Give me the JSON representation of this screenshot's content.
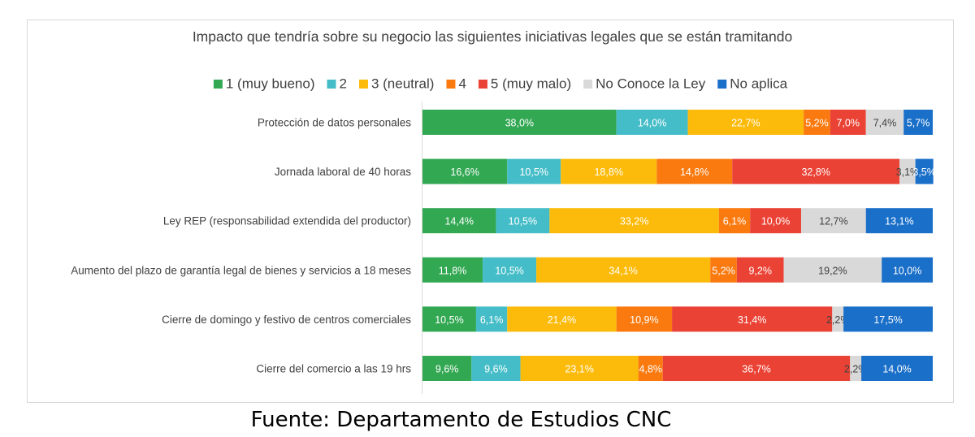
{
  "chart_data": {
    "type": "bar",
    "orientation": "horizontal",
    "stacked": true,
    "title": "Impacto que tendría sobre su negocio las siguientes iniciativas legales que se están tramitando",
    "categories": [
      "Protección de datos personales",
      "Jornada laboral de 40 horas",
      "Ley REP (responsabilidad extendida del productor)",
      "Aumento del plazo de garantía legal de bienes y servicios a 18 meses",
      "Cierre de domingo y festivo de centros comerciales",
      "Cierre del comercio a las 19 hrs"
    ],
    "series": [
      {
        "name": "1 (muy bueno)",
        "color": "#33a853",
        "values": [
          38.0,
          16.6,
          14.4,
          11.8,
          10.5,
          9.6
        ],
        "labels": [
          "38,0%",
          "16,6%",
          "14,4%",
          "11,8%",
          "10,5%",
          "9,6%"
        ]
      },
      {
        "name": "2",
        "color": "#45bdc8",
        "values": [
          14.0,
          10.5,
          10.5,
          10.5,
          6.1,
          9.6
        ],
        "labels": [
          "14,0%",
          "10,5%",
          "10,5%",
          "10,5%",
          "6,1%",
          "9,6%"
        ]
      },
      {
        "name": "3 (neutral)",
        "color": "#fcbb0b",
        "values": [
          22.7,
          18.8,
          33.2,
          34.1,
          21.4,
          23.1
        ],
        "labels": [
          "22,7%",
          "18,8%",
          "33,2%",
          "34,1%",
          "21,4%",
          "23,1%"
        ]
      },
      {
        "name": "4",
        "color": "#fa7a0f",
        "values": [
          5.2,
          14.8,
          6.1,
          5.2,
          10.9,
          4.8
        ],
        "labels": [
          "5,2%",
          "14,8%",
          "6,1%",
          "5,2%",
          "10,9%",
          "4,8%"
        ]
      },
      {
        "name": "5 (muy malo)",
        "color": "#ea4335",
        "values": [
          7.0,
          32.8,
          10.0,
          9.2,
          31.4,
          36.7
        ],
        "labels": [
          "7,0%",
          "32,8%",
          "10,0%",
          "9,2%",
          "31,4%",
          "36,7%"
        ]
      },
      {
        "name": "No Conoce la Ley",
        "color": "#d9d9d9",
        "values": [
          7.4,
          3.1,
          12.7,
          19.2,
          2.2,
          2.2
        ],
        "labels": [
          "7,4%",
          "3,1%",
          "12,7%",
          "19,2%",
          "2,2%",
          "2,2%"
        ]
      },
      {
        "name": "No aplica",
        "color": "#1a6fc9",
        "values": [
          5.7,
          3.5,
          13.1,
          10.0,
          17.5,
          14.0
        ],
        "labels": [
          "5,7%",
          "3,5%",
          "13,1%",
          "10,0%",
          "17,5%",
          "14,0%"
        ]
      }
    ],
    "xlim": [
      0,
      100
    ],
    "legend": "top",
    "grid": false
  },
  "source_note": "Fuente: Departamento de Estudios CNC"
}
